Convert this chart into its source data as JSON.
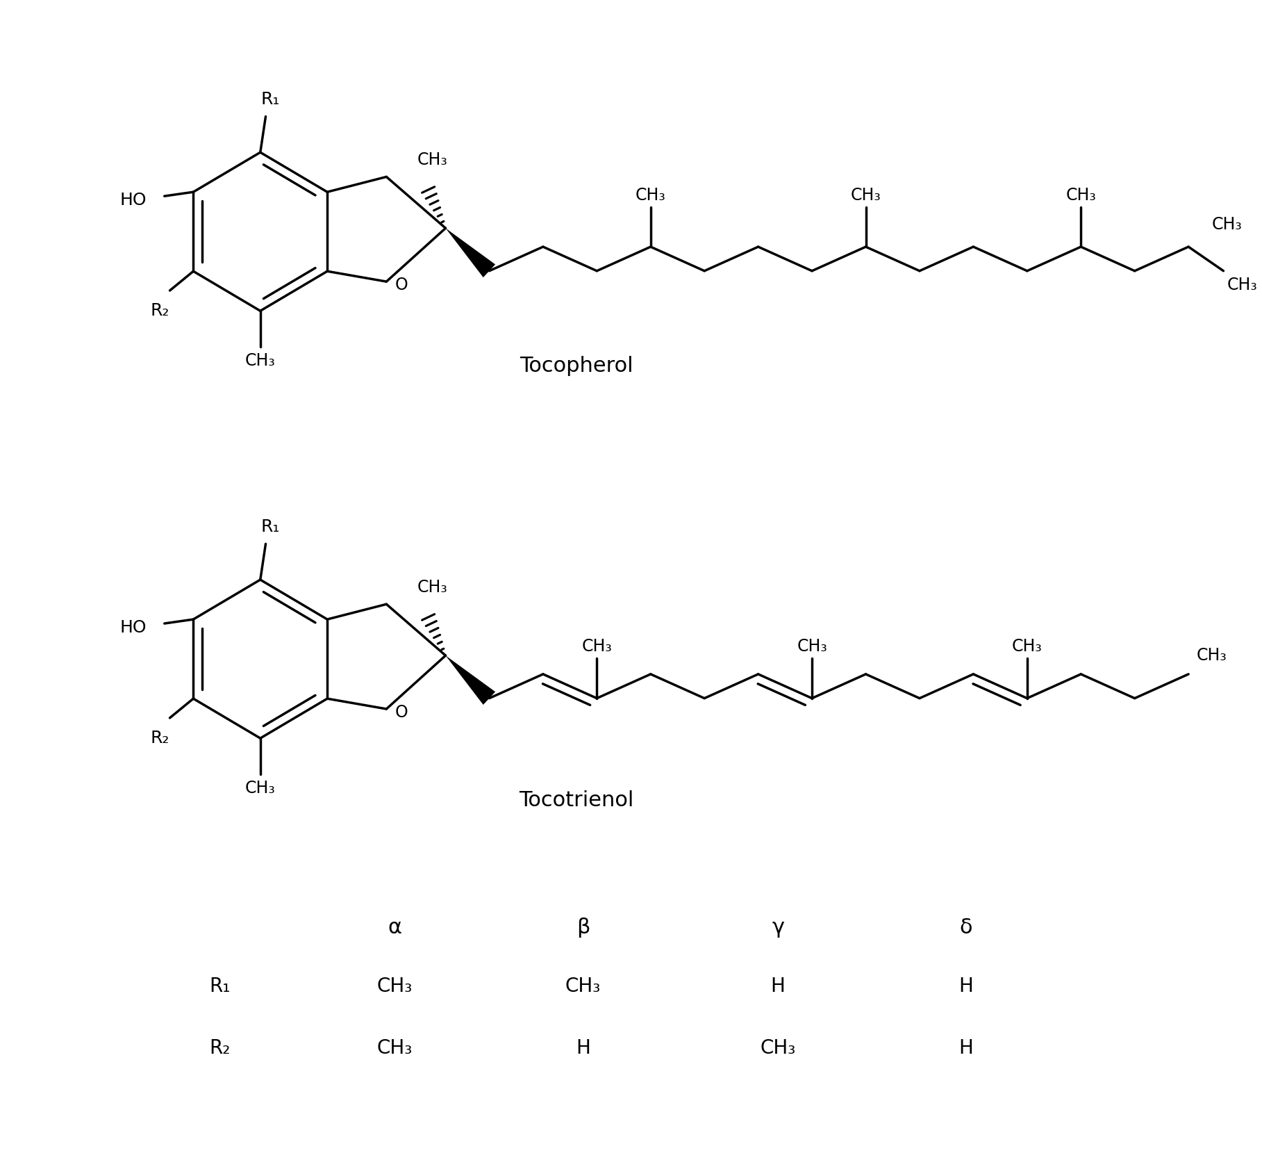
{
  "background_color": "#ffffff",
  "line_color": "#000000",
  "text_color": "#000000",
  "figsize": [
    18.17,
    16.79
  ],
  "dpi": 100,
  "tocopherol_label": "Tocopherol",
  "tocotrienol_label": "Tocotrienol",
  "table_headers": [
    "α",
    "β",
    "γ",
    "δ"
  ],
  "table_rows": [
    [
      "R₁",
      "CH₃",
      "CH₃",
      "H",
      "H"
    ],
    [
      "R₂",
      "CH₃",
      "H",
      "CH₃",
      "H"
    ]
  ],
  "lw": 2.5,
  "fs_label": 17,
  "fs_name": 22,
  "fs_table_header": 22,
  "fs_table_cell": 20
}
